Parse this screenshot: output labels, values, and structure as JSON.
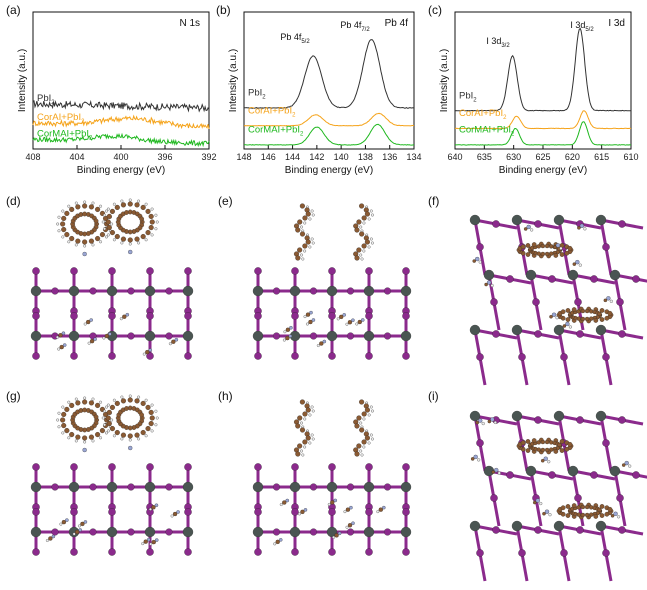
{
  "panels": [
    "(a)",
    "(b)",
    "(c)",
    "(d)",
    "(e)",
    "(f)",
    "(g)",
    "(h)",
    "(i)"
  ],
  "colors": {
    "PbI2": "#333333",
    "CorAI+PbI2": "#f5a31a",
    "CorMAI+PbI2": "#1fb81f",
    "Pb": "#4a5552",
    "I": "#8b2a8c",
    "C": "#8a5a33",
    "N": "#9aa6d4",
    "H": "#eeeeee"
  },
  "chart_data": [
    {
      "type": "line",
      "panel": "(a)",
      "corner_label": "N 1s",
      "xlabel": "Binding energy (eV)",
      "ylabel": "Intensity (a.u.)",
      "xlim": [
        408,
        392
      ],
      "xticks": [
        "408",
        "404",
        "400",
        "396",
        "392"
      ],
      "series": [
        {
          "name": "PbI2",
          "base": 0.3,
          "noise": 0.05,
          "peaks": []
        },
        {
          "name": "CorAI+PbI2",
          "base": 0.16,
          "noise": 0.04,
          "peaks": [
            {
              "center": 399.0,
              "height": 0.05,
              "width": 2.5
            }
          ]
        },
        {
          "name": "CorMAI+PbI2",
          "base": 0.04,
          "noise": 0.035,
          "peaks": [
            {
              "center": 400.5,
              "height": 0.04,
              "width": 2.0
            }
          ]
        }
      ],
      "annotations": []
    },
    {
      "type": "line",
      "panel": "(b)",
      "corner_label": "Pb 4f",
      "xlabel": "Binding energy (eV)",
      "ylabel": "Intensity (a.u.)",
      "xlim": [
        148,
        134
      ],
      "xticks": [
        "148",
        "146",
        "144",
        "142",
        "140",
        "138",
        "136",
        "134"
      ],
      "series": [
        {
          "name": "PbI2",
          "base": 0.3,
          "noise": 0.005,
          "peaks": [
            {
              "center": 142.3,
              "height": 0.38,
              "width": 0.7
            },
            {
              "center": 137.5,
              "height": 0.5,
              "width": 0.7
            }
          ]
        },
        {
          "name": "CorAI+PbI2",
          "base": 0.17,
          "noise": 0.003,
          "peaks": [
            {
              "center": 142.1,
              "height": 0.08,
              "width": 0.6
            },
            {
              "center": 136.9,
              "height": 0.09,
              "width": 0.6
            }
          ]
        },
        {
          "name": "CorMAI+PbI2",
          "base": 0.03,
          "noise": 0.003,
          "peaks": [
            {
              "center": 142.0,
              "height": 0.13,
              "width": 0.6
            },
            {
              "center": 137.0,
              "height": 0.15,
              "width": 0.6
            }
          ]
        }
      ],
      "annotations": [
        {
          "base": "Pb 4f",
          "sub": "5/2"
        },
        {
          "base": "Pb 4f",
          "sub": "7/2"
        }
      ]
    },
    {
      "type": "line",
      "panel": "(c)",
      "corner_label": "I 3d",
      "xlabel": "Binding energy (eV)",
      "ylabel": "Intensity (a.u.)",
      "xlim": [
        640,
        610
      ],
      "xticks": [
        "640",
        "635",
        "630",
        "625",
        "620",
        "615",
        "610"
      ],
      "series": [
        {
          "name": "PbI2",
          "base": 0.28,
          "noise": 0.004,
          "peaks": [
            {
              "center": 630.2,
              "height": 0.4,
              "width": 0.8
            },
            {
              "center": 618.7,
              "height": 0.6,
              "width": 0.8
            }
          ]
        },
        {
          "name": "CorAI+PbI2",
          "base": 0.15,
          "noise": 0.003,
          "peaks": [
            {
              "center": 629.5,
              "height": 0.09,
              "width": 0.7
            },
            {
              "center": 618.0,
              "height": 0.13,
              "width": 0.7
            }
          ]
        },
        {
          "name": "CorMAI+PbI2",
          "base": 0.03,
          "noise": 0.003,
          "peaks": [
            {
              "center": 629.7,
              "height": 0.12,
              "width": 0.7
            },
            {
              "center": 618.1,
              "height": 0.17,
              "width": 0.7
            }
          ]
        }
      ],
      "annotations": [
        {
          "base": "I 3d",
          "sub": "3/2"
        },
        {
          "base": "I 3d",
          "sub": "5/2"
        }
      ]
    }
  ]
}
